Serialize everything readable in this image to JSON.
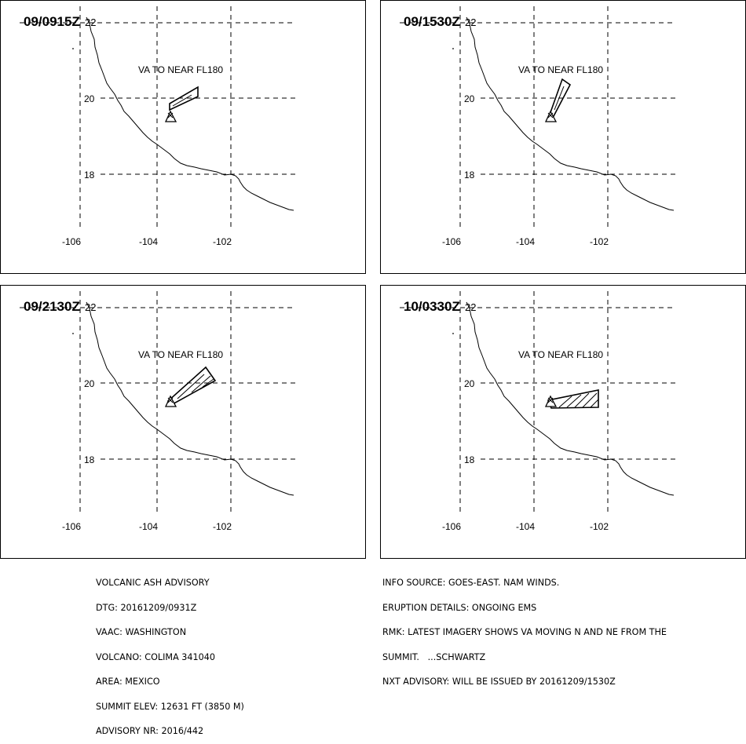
{
  "panels": [
    {
      "time": "09/0915Z",
      "zone": "22",
      "label": "VA TO NEAR FL180"
    },
    {
      "time": "09/1530Z",
      "zone": "22",
      "label": "VA TO NEAR FL180"
    },
    {
      "time": "09/2130Z",
      "zone": "22",
      "label": "VA TO NEAR FL180"
    },
    {
      "time": "10/0330Z",
      "zone": "22",
      "label": "VA TO NEAR FL180"
    }
  ],
  "lon_labels": [
    "-106",
    "-104",
    "-102"
  ],
  "lat_labels": [
    "20",
    "18"
  ],
  "left_info": [
    "VOLCANIC ASH ADVISORY",
    "DTG: 20161209/0931Z",
    "VAAC: WASHINGTON",
    "VOLCANO: COLIMA 341040",
    "AREA: MEXICO",
    "SUMMIT ELEV: 12631 FT (3850 M)",
    "ADVISORY NR: 2016/442"
  ],
  "right_info": [
    "INFO SOURCE: GOES-EAST. NAM WINDS.",
    "ERUPTION DETAILS: ONGOING EMS",
    "RMK: LATEST IMAGERY SHOWS VA MOVING N AND NE FROM THE",
    "SUMMIT.   ...SCHWARTZ",
    "NXT ADVISORY: WILL BE ISSUED BY 20161209/1530Z"
  ]
}
